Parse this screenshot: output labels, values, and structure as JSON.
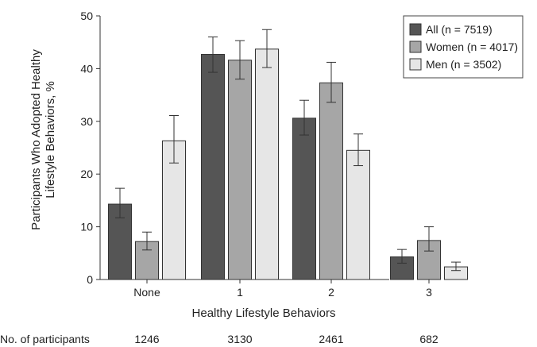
{
  "chart_data": {
    "type": "bar",
    "xlabel": "Healthy Lifestyle Behaviors",
    "ylabel_lines": [
      "Participants Who Adopted Healthy",
      "Lifestyle Behaviors, %"
    ],
    "ylim": [
      0,
      50
    ],
    "yticks": [
      "0",
      "10",
      "20",
      "30",
      "40",
      "50"
    ],
    "categories": [
      "None",
      "1",
      "2",
      "3"
    ],
    "series": [
      {
        "name": "All (n = 7519)",
        "values": [
          14.3,
          42.7,
          30.6,
          4.3
        ],
        "err_low": [
          11.7,
          39.3,
          27.4,
          3.1
        ],
        "err_high": [
          17.3,
          46.0,
          34.0,
          5.7
        ],
        "color": "#555555"
      },
      {
        "name": "Women (n = 4017)",
        "values": [
          7.2,
          41.6,
          37.3,
          7.4
        ],
        "err_low": [
          5.6,
          38.0,
          33.6,
          5.4
        ],
        "err_high": [
          9.0,
          45.3,
          41.2,
          10.0
        ],
        "color": "#a6a6a6"
      },
      {
        "name": "Men (n = 3502)",
        "values": [
          26.3,
          43.7,
          24.5,
          2.4
        ],
        "err_low": [
          22.1,
          40.2,
          21.6,
          1.7
        ],
        "err_high": [
          31.1,
          47.4,
          27.6,
          3.3
        ],
        "color": "#e6e6e6"
      }
    ],
    "legend": {
      "position": "top-right"
    },
    "grid": false,
    "participants": {
      "label": "No. of participants",
      "values": [
        "1246",
        "3130",
        "2461",
        "682"
      ]
    }
  }
}
